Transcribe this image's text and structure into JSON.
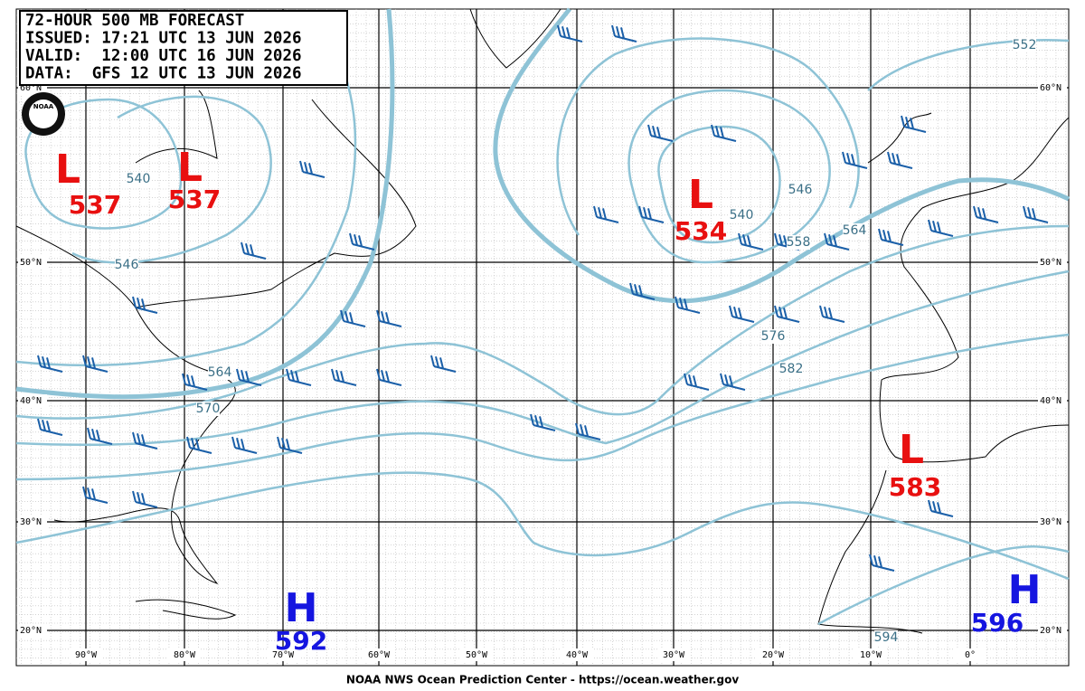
{
  "header": {
    "lines": [
      "72-HOUR 500 MB FORECAST",
      "ISSUED: 17:21 UTC 13 JUN 2026",
      "VALID:  12:00 UTC 16 JUN 2026",
      "DATA:  GFS 12 UTC 13 JUN 2026"
    ]
  },
  "logo": "NOAA",
  "latitude_labels": [
    "60°N",
    "50°N",
    "40°N",
    "30°N",
    "20°N"
  ],
  "longitude_labels": [
    "90°W",
    "80°W",
    "70°W",
    "60°W",
    "50°W",
    "40°W",
    "30°W",
    "20°W",
    "10°W",
    "0°"
  ],
  "centers": [
    {
      "type": "L",
      "value": 537
    },
    {
      "type": "L",
      "value": 537
    },
    {
      "type": "L",
      "value": 534
    },
    {
      "type": "L",
      "value": 583
    },
    {
      "type": "H",
      "value": 592
    },
    {
      "type": "H",
      "value": 596
    }
  ],
  "contour_labels": [
    552,
    540,
    546,
    546,
    540,
    558,
    564,
    564,
    570,
    576,
    582,
    594
  ],
  "footer": "NOAA NWS Ocean Prediction Center - https://ocean.weather.gov"
}
